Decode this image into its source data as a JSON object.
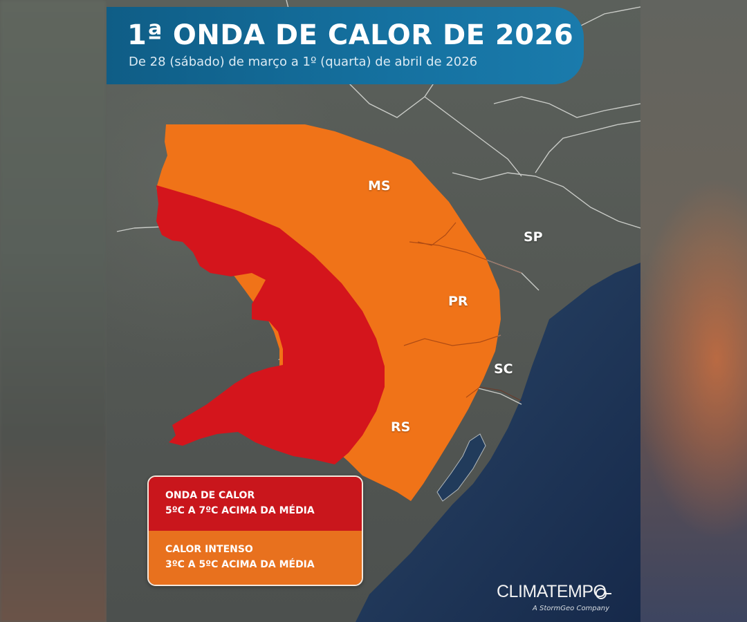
{
  "header": {
    "title": "1ª ONDA DE CALOR DE 2026",
    "subtitle": "De 28 (sábado) de março a 1º (quarta) de abril de 2026"
  },
  "states": {
    "ms": "MS",
    "sp": "SP",
    "pr": "PR",
    "sc": "SC",
    "rs": "RS"
  },
  "legend": {
    "heatwave": {
      "title": "ONDA DE CALOR",
      "description": "5ºC A 7ºC ACIMA DA MÉDIA",
      "color": "#c9161c"
    },
    "intense_heat": {
      "title": "CALOR INTENSO",
      "description": "3ºC A 5ºC ACIMA DA MÉDIA",
      "color": "#e8711e"
    }
  },
  "brand": {
    "name": "CLIMATEMPO",
    "tagline": "A StormGeo Company"
  },
  "colors": {
    "banner": "#1571a0",
    "land": "#555955",
    "ocean": "#1d3556",
    "heatwave_zone": "#d4151c",
    "intense_zone": "#f07318"
  }
}
